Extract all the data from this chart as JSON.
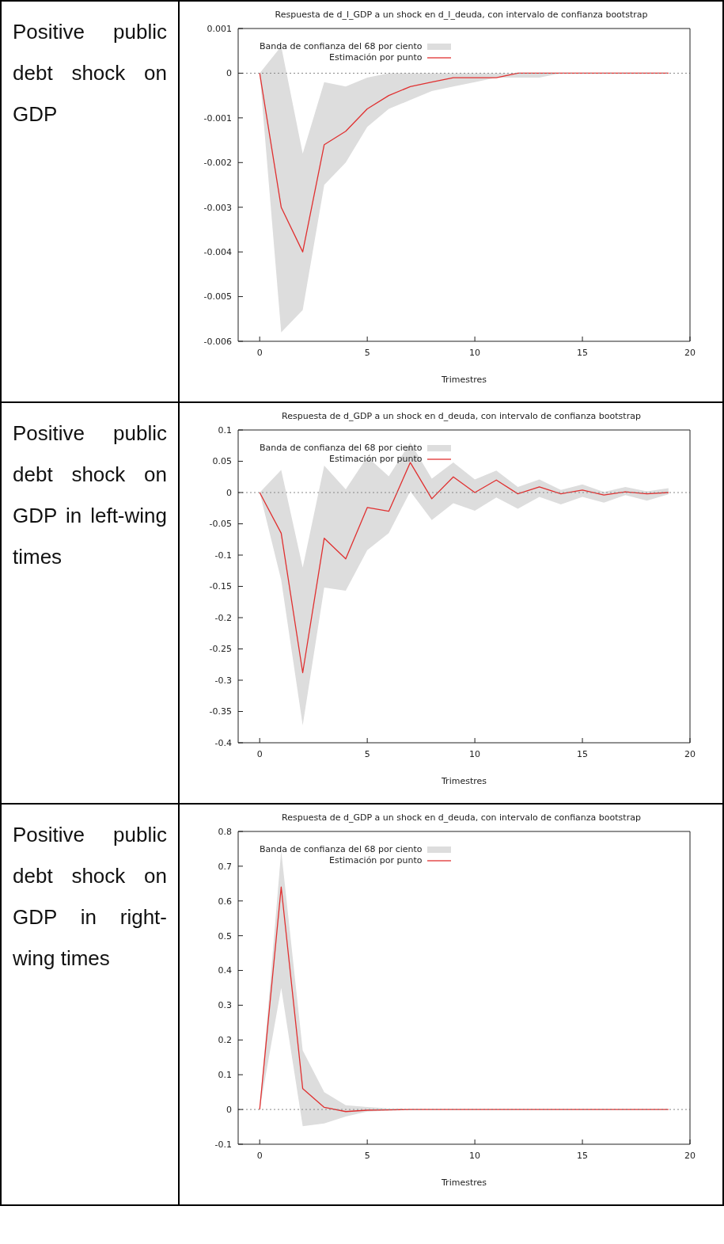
{
  "chart_data": [
    {
      "type": "line",
      "title": "Respuesta de d_l_GDP a un shock en d_l_deuda, con intervalo de confianza bootstrap",
      "xlabel": "Trimestres",
      "annotations": [
        "Positive public debt shock on GDP"
      ],
      "x": [
        0,
        1,
        2,
        3,
        4,
        5,
        6,
        7,
        8,
        9,
        10,
        11,
        12,
        13,
        14,
        15,
        16,
        17,
        18,
        19
      ],
      "xlim": [
        -1,
        20
      ],
      "xticks": [
        0,
        5,
        10,
        15,
        20
      ],
      "ylim": [
        -0.006,
        0.001
      ],
      "yticks": [
        -0.006,
        -0.005,
        -0.004,
        -0.003,
        -0.002,
        -0.001,
        0,
        0.001
      ],
      "legend": "top left",
      "ref_lines": [
        {
          "axis": "y",
          "value": 0,
          "color": "#888888",
          "line_style": "dotted"
        }
      ],
      "series": [
        {
          "type": "area",
          "name": "Banda de confianza del 68 por ciento",
          "color": "#dddddd",
          "values": [
            null,
            null,
            null,
            null,
            null,
            null,
            null,
            null,
            null,
            null,
            null,
            null,
            null,
            null,
            null,
            null,
            null,
            null,
            null,
            null
          ],
          "lower": [
            0,
            -0.0058,
            -0.0053,
            -0.0025,
            -0.002,
            -0.0012,
            -0.0008,
            -0.0006,
            -0.0004,
            -0.0003,
            -0.0002,
            -0.0001,
            -0.0001,
            -0.0001,
            0,
            0,
            0,
            0,
            0,
            0
          ],
          "upper": [
            0,
            0.0006,
            -0.0018,
            -0.0002,
            -0.0003,
            -0.0001,
            0,
            0,
            0,
            0,
            0,
            0,
            0,
            0,
            0,
            0,
            0,
            0,
            0,
            0
          ]
        },
        {
          "name": "Estimación por punto",
          "color": "#e03030",
          "values": [
            0,
            -0.003,
            -0.004,
            -0.0016,
            -0.0013,
            -0.0008,
            -0.0005,
            -0.0003,
            -0.0002,
            -0.0001,
            -0.0001,
            -0.0001,
            0,
            0,
            0,
            0,
            0,
            0,
            0,
            0
          ]
        }
      ]
    },
    {
      "type": "line",
      "title": "Respuesta de d_GDP a un shock en d_deuda, con intervalo de confianza bootstrap",
      "xlabel": "Trimestres",
      "annotations": [
        "Positive public debt shock on GDP in left-wing times"
      ],
      "x": [
        0,
        1,
        2,
        3,
        4,
        5,
        6,
        7,
        8,
        9,
        10,
        11,
        12,
        13,
        14,
        15,
        16,
        17,
        18,
        19
      ],
      "xlim": [
        -1,
        20
      ],
      "xticks": [
        0,
        5,
        10,
        15,
        20
      ],
      "ylim": [
        -0.4,
        0.1
      ],
      "yticks": [
        -0.4,
        -0.35,
        -0.3,
        -0.25,
        -0.2,
        -0.15,
        -0.1,
        -0.05,
        0,
        0.05,
        0.1
      ],
      "legend": "top left",
      "ref_lines": [
        {
          "axis": "y",
          "value": 0,
          "color": "#888888",
          "line_style": "dotted"
        }
      ],
      "series": [
        {
          "type": "area",
          "name": "Banda de confianza del 68 por ciento",
          "color": "#dddddd",
          "values": [
            null,
            null,
            null,
            null,
            null,
            null,
            null,
            null,
            null,
            null,
            null,
            null,
            null,
            null,
            null,
            null,
            null,
            null,
            null,
            null
          ],
          "lower": [
            0,
            -0.14,
            -0.372,
            -0.152,
            -0.157,
            -0.092,
            -0.065,
            0.002,
            -0.044,
            -0.017,
            -0.029,
            -0.008,
            -0.026,
            -0.007,
            -0.019,
            -0.007,
            -0.016,
            -0.004,
            -0.013,
            -0.003
          ],
          "upper": [
            0,
            0.036,
            -0.12,
            0.043,
            0.005,
            0.057,
            0.026,
            0.08,
            0.022,
            0.048,
            0.021,
            0.035,
            0.009,
            0.021,
            0.004,
            0.013,
            0.001,
            0.009,
            0.002,
            0.007
          ]
        },
        {
          "name": "Estimación por punto",
          "color": "#e03030",
          "values": [
            0,
            -0.065,
            -0.288,
            -0.073,
            -0.106,
            -0.024,
            -0.03,
            0.048,
            -0.01,
            0.025,
            0,
            0.02,
            -0.002,
            0.009,
            -0.002,
            0.004,
            -0.004,
            0.001,
            -0.002,
            0
          ]
        }
      ]
    },
    {
      "type": "line",
      "title": "Respuesta de d_GDP a un shock en d_deuda, con intervalo de confianza bootstrap",
      "xlabel": "Trimestres",
      "annotations": [
        "Positive public debt shock on GDP in right-wing times"
      ],
      "x": [
        0,
        1,
        2,
        3,
        4,
        5,
        6,
        7,
        8,
        9,
        10,
        11,
        12,
        13,
        14,
        15,
        16,
        17,
        18,
        19
      ],
      "xlim": [
        -1,
        20
      ],
      "xticks": [
        0,
        5,
        10,
        15,
        20
      ],
      "ylim": [
        -0.1,
        0.8
      ],
      "yticks": [
        -0.1,
        0,
        0.1,
        0.2,
        0.3,
        0.4,
        0.5,
        0.6,
        0.7,
        0.8
      ],
      "legend": "top left",
      "ref_lines": [
        {
          "axis": "y",
          "value": 0,
          "color": "#888888",
          "line_style": "dotted"
        }
      ],
      "series": [
        {
          "type": "area",
          "name": "Banda de confianza del 68 por ciento",
          "color": "#dddddd",
          "values": [
            null,
            null,
            null,
            null,
            null,
            null,
            null,
            null,
            null,
            null,
            null,
            null,
            null,
            null,
            null,
            null,
            null,
            null,
            null,
            null
          ],
          "lower": [
            0,
            0.35,
            -0.048,
            -0.04,
            -0.02,
            -0.006,
            -0.003,
            -0.001,
            0,
            0,
            0,
            0,
            0,
            0,
            0,
            0,
            0,
            0,
            0,
            0
          ],
          "upper": [
            0,
            0.745,
            0.17,
            0.05,
            0.012,
            0.007,
            0.003,
            0.001,
            0,
            0,
            0,
            0,
            0,
            0,
            0,
            0,
            0,
            0,
            0,
            0
          ]
        },
        {
          "name": "Estimación por punto",
          "color": "#e03030",
          "values": [
            0,
            0.64,
            0.06,
            0.006,
            -0.006,
            -0.002,
            -0.001,
            0,
            0,
            0,
            0,
            0,
            0,
            0,
            0,
            0,
            0,
            0,
            0,
            0
          ]
        }
      ]
    }
  ]
}
